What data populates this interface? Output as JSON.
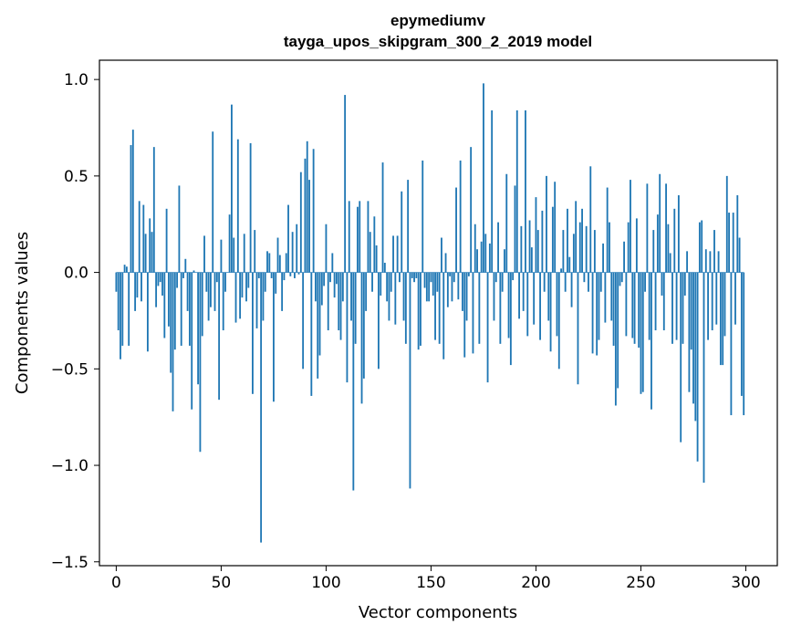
{
  "chart_data": {
    "type": "bar",
    "title": "epymediumv",
    "subtitle": "tayga_upos_skipgram_300_2_2019 model",
    "xlabel": "Vector components",
    "ylabel": "Components values",
    "xlim": [
      -8,
      315
    ],
    "ylim": [
      -1.52,
      1.1
    ],
    "grid": false,
    "bar_color": "#1f77b4",
    "x_ticks": [
      0,
      50,
      100,
      150,
      200,
      250,
      300
    ],
    "x_tick_labels": [
      "0",
      "50",
      "100",
      "150",
      "200",
      "250",
      "300"
    ],
    "y_ticks": [
      1.0,
      0.5,
      0.0,
      -0.5,
      -1.0,
      -1.5
    ],
    "y_tick_labels": [
      "1.0",
      "0.5",
      "0.0",
      "−0.5",
      "−1.0",
      "−1.5"
    ],
    "x_start": 0,
    "values": [
      -0.1,
      -0.3,
      -0.45,
      -0.38,
      0.04,
      0.03,
      -0.38,
      0.66,
      0.74,
      -0.2,
      -0.13,
      0.37,
      -0.15,
      0.35,
      0.2,
      -0.41,
      0.28,
      0.21,
      0.65,
      -0.18,
      -0.07,
      -0.05,
      -0.12,
      -0.34,
      0.33,
      -0.28,
      -0.52,
      -0.72,
      -0.4,
      -0.08,
      0.45,
      -0.38,
      -0.03,
      0.07,
      -0.2,
      -0.38,
      -0.71,
      0.01,
      0.0,
      -0.58,
      -0.93,
      -0.33,
      0.19,
      -0.1,
      -0.25,
      -0.18,
      0.73,
      -0.2,
      -0.05,
      -0.66,
      0.17,
      -0.3,
      -0.1,
      0.0,
      0.3,
      0.87,
      0.18,
      -0.26,
      0.69,
      -0.24,
      -0.13,
      0.2,
      -0.15,
      -0.08,
      0.67,
      -0.63,
      0.22,
      -0.29,
      -0.03,
      -1.4,
      -0.25,
      -0.1,
      0.11,
      0.1,
      -0.03,
      -0.67,
      -0.11,
      0.18,
      0.09,
      -0.2,
      -0.04,
      0.1,
      0.35,
      -0.02,
      0.21,
      -0.03,
      0.25,
      -0.01,
      0.52,
      -0.5,
      0.59,
      0.68,
      0.48,
      -0.64,
      0.64,
      -0.15,
      -0.55,
      -0.43,
      -0.17,
      -0.07,
      0.25,
      -0.3,
      -0.05,
      0.1,
      -0.13,
      -0.06,
      -0.3,
      -0.35,
      -0.15,
      0.92,
      -0.57,
      0.37,
      -0.25,
      -1.13,
      -0.37,
      0.34,
      0.37,
      -0.68,
      -0.55,
      -0.2,
      0.37,
      0.21,
      -0.1,
      0.29,
      0.14,
      -0.5,
      -0.12,
      0.57,
      0.05,
      -0.15,
      -0.25,
      -0.1,
      0.19,
      -0.27,
      0.19,
      -0.05,
      0.42,
      -0.25,
      -0.37,
      0.48,
      -1.12,
      -0.03,
      -0.05,
      -0.03,
      -0.4,
      -0.38,
      0.58,
      -0.08,
      -0.15,
      -0.15,
      -0.05,
      -0.12,
      -0.35,
      -0.1,
      -0.37,
      0.18,
      -0.45,
      0.1,
      -0.18,
      -0.02,
      -0.15,
      -0.05,
      0.44,
      -0.14,
      0.58,
      -0.2,
      -0.44,
      -0.25,
      -0.02,
      0.65,
      -0.42,
      0.25,
      0.12,
      -0.37,
      0.16,
      0.98,
      0.2,
      -0.57,
      0.15,
      0.84,
      -0.25,
      -0.05,
      0.26,
      -0.37,
      -0.1,
      0.12,
      0.51,
      -0.34,
      -0.48,
      -0.04,
      0.45,
      0.84,
      -0.24,
      0.24,
      -0.2,
      0.84,
      -0.33,
      0.27,
      0.13,
      -0.27,
      0.39,
      0.22,
      -0.35,
      0.32,
      -0.1,
      0.5,
      -0.25,
      -0.41,
      0.34,
      0.47,
      -0.33,
      -0.5,
      0.02,
      0.22,
      -0.1,
      0.33,
      0.08,
      -0.18,
      0.2,
      0.37,
      -0.58,
      0.26,
      0.33,
      -0.05,
      0.24,
      -0.1,
      0.55,
      -0.42,
      0.22,
      -0.43,
      -0.35,
      -0.1,
      0.15,
      -0.26,
      0.44,
      0.26,
      -0.25,
      -0.38,
      -0.69,
      -0.6,
      -0.07,
      -0.05,
      0.16,
      -0.33,
      0.26,
      0.48,
      -0.34,
      -0.37,
      0.28,
      -0.39,
      -0.63,
      -0.62,
      -0.1,
      0.46,
      -0.35,
      -0.71,
      0.22,
      -0.3,
      0.3,
      0.51,
      -0.12,
      -0.3,
      0.46,
      0.25,
      0.1,
      -0.37,
      0.33,
      -0.35,
      0.4,
      -0.88,
      -0.37,
      -0.12,
      0.11,
      -0.62,
      -0.4,
      -0.68,
      -0.77,
      -0.98,
      0.26,
      0.27,
      -1.09,
      0.12,
      -0.35,
      0.11,
      -0.3,
      0.22,
      -0.27,
      0.11,
      -0.48,
      -0.48,
      -0.33,
      0.5,
      0.31,
      -0.74,
      0.31,
      -0.27,
      0.4,
      0.18,
      -0.64,
      -0.74
    ]
  }
}
